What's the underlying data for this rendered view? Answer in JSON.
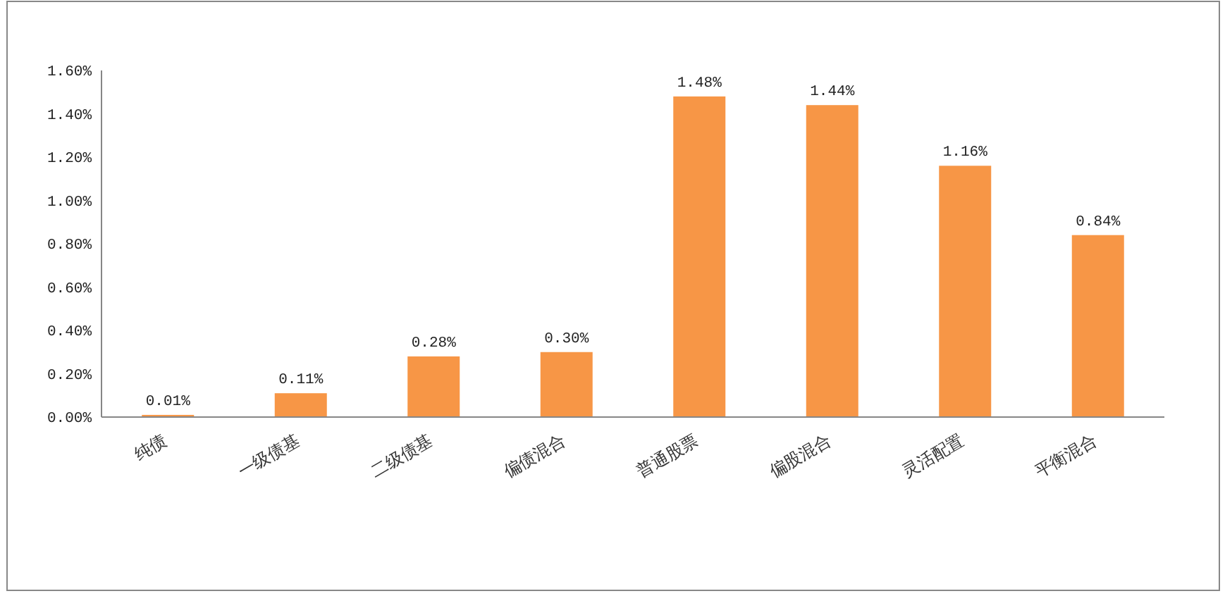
{
  "chart_data": {
    "type": "bar",
    "categories": [
      "纯债",
      "一级债基",
      "二级债基",
      "偏债混合",
      "普通股票",
      "偏股混合",
      "灵活配置",
      "平衡混合"
    ],
    "values": [
      0.01,
      0.11,
      0.28,
      0.3,
      1.48,
      1.44,
      1.16,
      0.84
    ],
    "value_labels": [
      "0.01%",
      "0.11%",
      "0.28%",
      "0.30%",
      "1.48%",
      "1.44%",
      "1.16%",
      "0.84%"
    ],
    "color": "#f79646",
    "ylim": [
      0,
      1.6
    ],
    "yticks": [
      {
        "value": 0,
        "label": "0.00%"
      },
      {
        "value": 0.2,
        "label": "0.20%"
      },
      {
        "value": 0.4,
        "label": "0.40%"
      },
      {
        "value": 0.6,
        "label": "0.60%"
      },
      {
        "value": 0.8,
        "label": "0.80%"
      },
      {
        "value": 1.0,
        "label": "1.00%"
      },
      {
        "value": 1.2,
        "label": "1.20%"
      },
      {
        "value": 1.4,
        "label": "1.40%"
      },
      {
        "value": 1.6,
        "label": "1.60%"
      }
    ],
    "grid": false
  }
}
